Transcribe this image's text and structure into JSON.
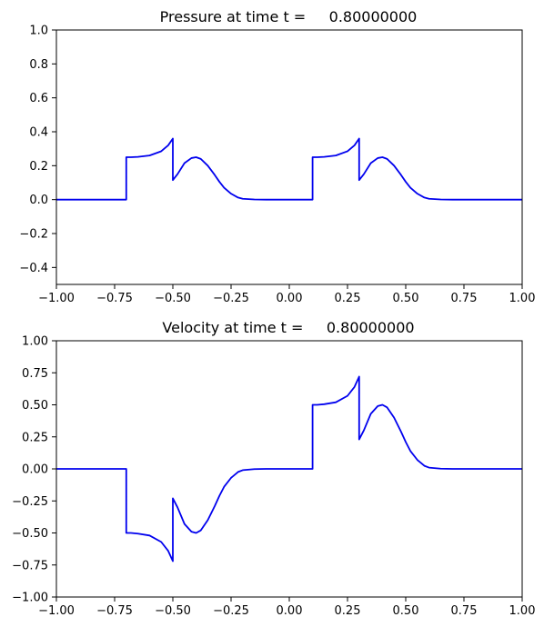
{
  "chart_data": [
    {
      "type": "line",
      "title": "Pressure at time t =     0.80000000",
      "xlim": [
        -1.0,
        1.0
      ],
      "ylim": [
        -0.5,
        1.0
      ],
      "xticks": [
        "−1.00",
        "−0.75",
        "−0.50",
        "−0.25",
        "0.00",
        "0.25",
        "0.50",
        "0.75",
        "1.00"
      ],
      "yticks": [
        "−0.4",
        "−0.2",
        "0.0",
        "0.2",
        "0.4",
        "0.6",
        "0.8",
        "1.0"
      ],
      "grid": false,
      "color": "#0000ee",
      "x": [
        -1.0,
        -0.7,
        -0.7,
        -0.68,
        -0.65,
        -0.6,
        -0.55,
        -0.52,
        -0.5,
        -0.5,
        -0.48,
        -0.45,
        -0.42,
        -0.4,
        -0.38,
        -0.35,
        -0.32,
        -0.3,
        -0.28,
        -0.25,
        -0.22,
        -0.2,
        -0.15,
        -0.1,
        0.1,
        0.1,
        0.12,
        0.15,
        0.2,
        0.25,
        0.28,
        0.3,
        0.3,
        0.32,
        0.35,
        0.38,
        0.4,
        0.42,
        0.45,
        0.48,
        0.5,
        0.52,
        0.55,
        0.58,
        0.6,
        0.65,
        0.7,
        1.0
      ],
      "y": [
        0.0,
        0.0,
        0.25,
        0.25,
        0.252,
        0.26,
        0.285,
        0.32,
        0.36,
        0.115,
        0.15,
        0.215,
        0.245,
        0.25,
        0.24,
        0.2,
        0.145,
        0.105,
        0.07,
        0.035,
        0.012,
        0.005,
        0.001,
        0.0,
        0.0,
        0.25,
        0.25,
        0.252,
        0.26,
        0.285,
        0.32,
        0.36,
        0.115,
        0.15,
        0.215,
        0.245,
        0.25,
        0.24,
        0.2,
        0.145,
        0.105,
        0.07,
        0.035,
        0.012,
        0.005,
        0.001,
        0.0,
        0.0
      ]
    },
    {
      "type": "line",
      "title": "Velocity at time t =     0.80000000",
      "xlim": [
        -1.0,
        1.0
      ],
      "ylim": [
        -1.0,
        1.0
      ],
      "xticks": [
        "−1.00",
        "−0.75",
        "−0.50",
        "−0.25",
        "0.00",
        "0.25",
        "0.50",
        "0.75",
        "1.00"
      ],
      "yticks": [
        "−1.00",
        "−0.75",
        "−0.50",
        "−0.25",
        "0.00",
        "0.25",
        "0.50",
        "0.75",
        "1.00"
      ],
      "grid": false,
      "color": "#0000ee",
      "x": [
        -1.0,
        -0.7,
        -0.7,
        -0.68,
        -0.65,
        -0.6,
        -0.55,
        -0.52,
        -0.5,
        -0.5,
        -0.48,
        -0.45,
        -0.42,
        -0.4,
        -0.38,
        -0.35,
        -0.32,
        -0.3,
        -0.28,
        -0.25,
        -0.22,
        -0.2,
        -0.15,
        -0.1,
        0.1,
        0.1,
        0.12,
        0.15,
        0.2,
        0.25,
        0.28,
        0.3,
        0.3,
        0.32,
        0.35,
        0.38,
        0.4,
        0.42,
        0.45,
        0.48,
        0.5,
        0.52,
        0.55,
        0.58,
        0.6,
        0.65,
        0.7,
        1.0
      ],
      "y": [
        0.0,
        0.0,
        -0.5,
        -0.5,
        -0.505,
        -0.52,
        -0.57,
        -0.64,
        -0.72,
        -0.23,
        -0.3,
        -0.43,
        -0.49,
        -0.5,
        -0.48,
        -0.4,
        -0.29,
        -0.21,
        -0.14,
        -0.07,
        -0.024,
        -0.01,
        -0.002,
        0.0,
        0.0,
        0.5,
        0.5,
        0.505,
        0.52,
        0.57,
        0.64,
        0.72,
        0.23,
        0.3,
        0.43,
        0.49,
        0.5,
        0.48,
        0.4,
        0.29,
        0.21,
        0.14,
        0.07,
        0.024,
        0.01,
        0.002,
        0.0,
        0.0
      ]
    }
  ]
}
